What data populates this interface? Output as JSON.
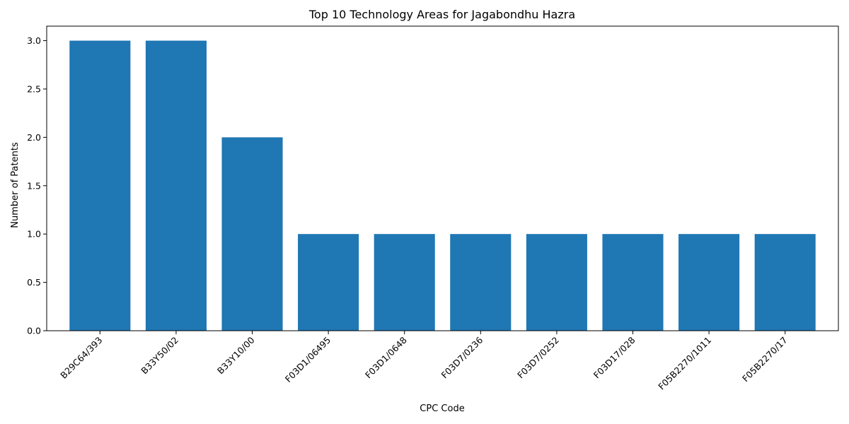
{
  "chart_data": {
    "type": "bar",
    "title": "Top 10 Technology Areas for Jagabondhu Hazra",
    "xlabel": "CPC Code",
    "ylabel": "Number of Patents",
    "categories": [
      "B29C64/393",
      "B33Y50/02",
      "B33Y10/00",
      "F03D1/06495",
      "F03D1/0648",
      "F03D7/0236",
      "F03D7/0252",
      "F03D17/028",
      "F05B2270/1011",
      "F05B2270/17"
    ],
    "values": [
      3,
      3,
      2,
      1,
      1,
      1,
      1,
      1,
      1,
      1
    ],
    "ylim": [
      0,
      3.15
    ],
    "yticks": [
      0.0,
      0.5,
      1.0,
      1.5,
      2.0,
      2.5,
      3.0
    ],
    "bar_color": "#1f77b4",
    "grid": false,
    "legend": false
  }
}
